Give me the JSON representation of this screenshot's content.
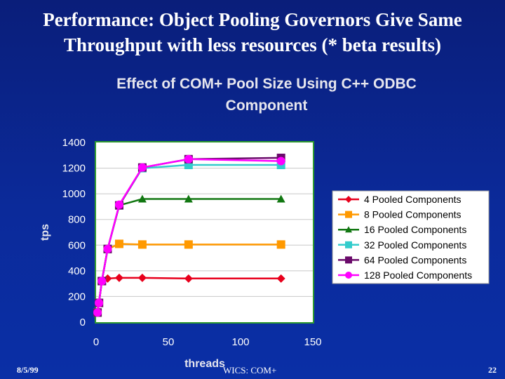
{
  "slide": {
    "title_line1": "Performance: Object Pooling Governors Give Same",
    "title_line2": "Throughput with less resources (* beta results)",
    "footer_date": "8/5/99",
    "footer_center": "WICS: COM+",
    "page_number": "22"
  },
  "chart_data": {
    "type": "line",
    "title_line1": "Effect of COM+ Pool Size Using C++ ODBC",
    "title_line2": "Component",
    "xlabel": "threads",
    "ylabel": "tps",
    "xlim": [
      0,
      150
    ],
    "ylim": [
      0,
      1400
    ],
    "x_ticks": [
      "0",
      "50",
      "100",
      "150"
    ],
    "y_ticks": [
      "0",
      "200",
      "400",
      "600",
      "800",
      "1000",
      "1200",
      "1400"
    ],
    "grid": "horizontal",
    "legend_position": "right",
    "series": [
      {
        "name": "4 Pooled Components",
        "color": "#e8001c",
        "marker": "diamond",
        "x": [
          1,
          2,
          4,
          8,
          16,
          32,
          64,
          128
        ],
        "y": [
          75,
          150,
          320,
          340,
          345,
          345,
          340,
          340
        ]
      },
      {
        "name": "8 Pooled Components",
        "color": "#ff9900",
        "marker": "square",
        "x": [
          1,
          2,
          4,
          8,
          16,
          32,
          64,
          128
        ],
        "y": [
          75,
          150,
          320,
          570,
          610,
          605,
          605,
          605
        ]
      },
      {
        "name": "16 Pooled Components",
        "color": "#117711",
        "marker": "triangle",
        "x": [
          1,
          2,
          4,
          8,
          16,
          32,
          64,
          128
        ],
        "y": [
          75,
          150,
          320,
          570,
          910,
          960,
          960,
          960
        ]
      },
      {
        "name": "32 Pooled Components",
        "color": "#33cccc",
        "marker": "square",
        "x": [
          1,
          2,
          4,
          8,
          16,
          32,
          64,
          128
        ],
        "y": [
          75,
          150,
          320,
          570,
          910,
          1200,
          1225,
          1225
        ]
      },
      {
        "name": "64 Pooled Components",
        "color": "#6a0a6a",
        "marker": "square",
        "x": [
          1,
          2,
          4,
          8,
          16,
          32,
          64,
          128
        ],
        "y": [
          75,
          150,
          320,
          570,
          910,
          1205,
          1270,
          1280
        ]
      },
      {
        "name": "128 Pooled Components",
        "color": "#ff00ff",
        "marker": "circle",
        "x": [
          1,
          2,
          4,
          8,
          16,
          32,
          64,
          128
        ],
        "y": [
          75,
          150,
          320,
          570,
          915,
          1205,
          1270,
          1255
        ]
      }
    ]
  }
}
